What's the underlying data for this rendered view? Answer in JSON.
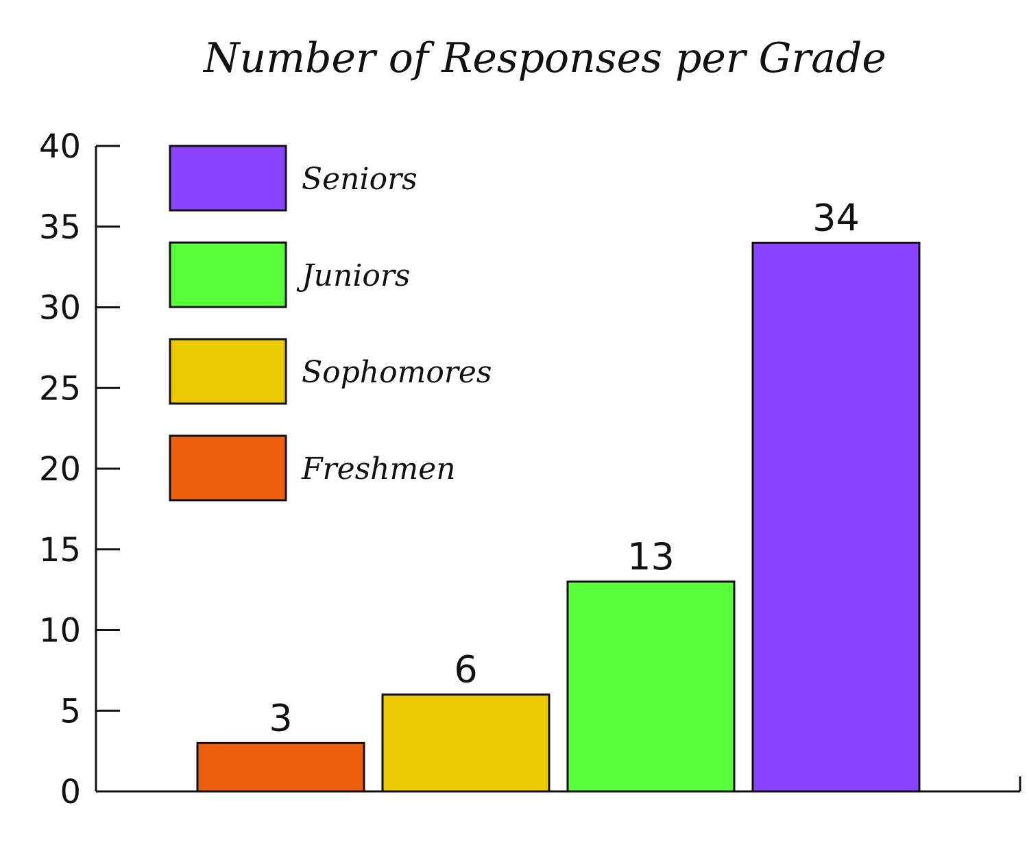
{
  "chart_data": {
    "type": "bar",
    "title": "Number of Responses per Grade",
    "xlabel": "",
    "ylabel": "",
    "ylim": [
      0,
      40
    ],
    "yticks": [
      0,
      5,
      10,
      15,
      20,
      25,
      30,
      35,
      40
    ],
    "categories": [
      "Freshmen",
      "Sophomores",
      "Juniors",
      "Seniors"
    ],
    "values": [
      3,
      6,
      13,
      34
    ],
    "data_labels": [
      "3",
      "6",
      "13",
      "34"
    ],
    "colors": [
      "#ee6010",
      "#eccb05",
      "#5aff3c",
      "#8a43ff"
    ],
    "legend": {
      "placement": "top-left",
      "entries": [
        {
          "label": "Seniors",
          "color": "#8a43ff"
        },
        {
          "label": "Juniors",
          "color": "#5aff3c"
        },
        {
          "label": "Sophomores",
          "color": "#eccb05"
        },
        {
          "label": "Freshmen",
          "color": "#ee6010"
        }
      ]
    },
    "grid": false
  }
}
